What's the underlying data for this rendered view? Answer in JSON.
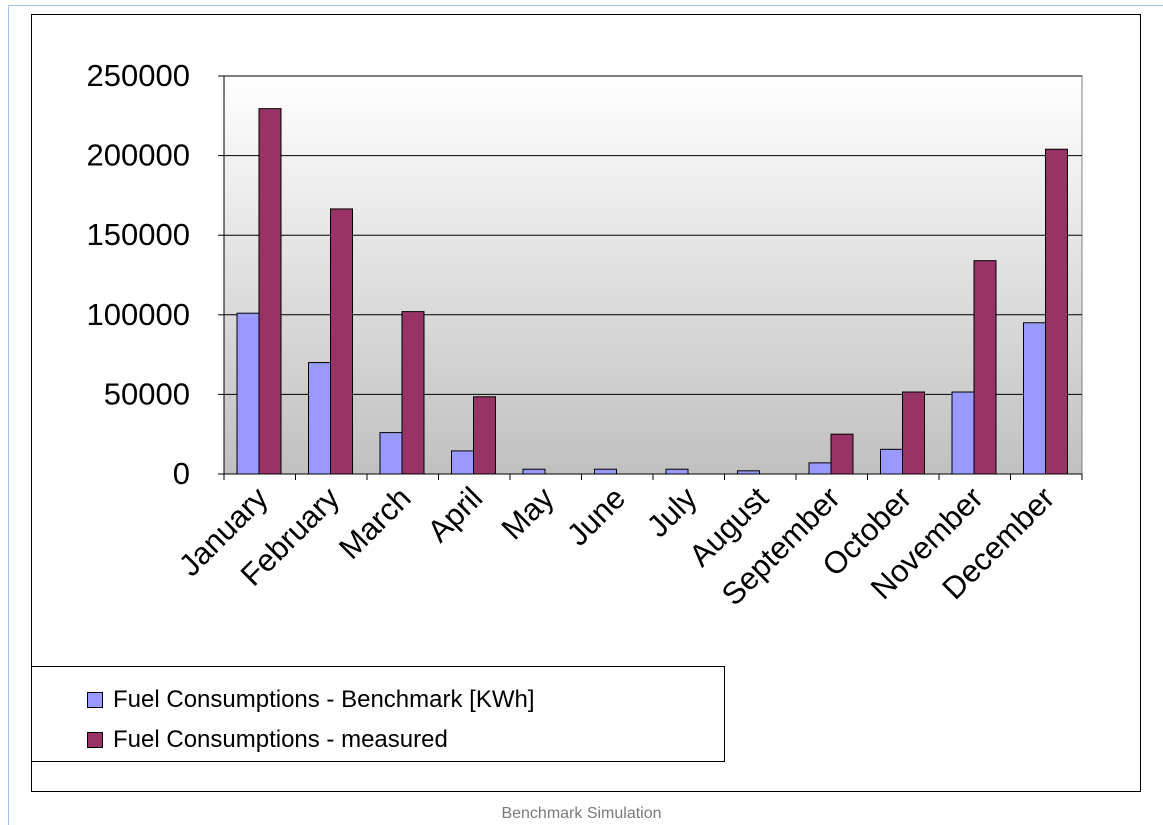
{
  "chart_data": {
    "type": "bar",
    "categories": [
      "January",
      "February",
      "March",
      "April",
      "May",
      "June",
      "July",
      "August",
      "September",
      "October",
      "November",
      "December"
    ],
    "series": [
      {
        "name": "Fuel Consumptions - Benchmark [KWh]",
        "color": "#9999ff",
        "values": [
          101000,
          70000,
          26000,
          14500,
          3000,
          3000,
          3000,
          2000,
          7000,
          15500,
          51500,
          95000
        ]
      },
      {
        "name": "Fuel Consumptions - measured",
        "color": "#993366",
        "values": [
          229500,
          166500,
          102000,
          48500,
          0,
          0,
          0,
          0,
          25000,
          51500,
          134000,
          204000
        ]
      }
    ],
    "y_ticks": [
      "0",
      "50000",
      "100000",
      "150000",
      "200000",
      "250000"
    ],
    "ylim": [
      0,
      250000
    ],
    "grid": true,
    "legend_position": "bottom-left"
  },
  "caption": "Benchmark Simulation"
}
